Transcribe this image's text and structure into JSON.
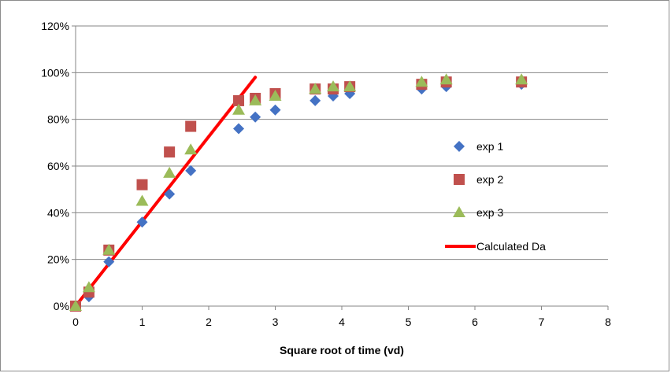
{
  "chart_data": {
    "type": "scatter",
    "title": "",
    "xlabel": "Square root of time (vd)",
    "ylabel": "",
    "xlim": [
      0,
      8
    ],
    "ylim": [
      0,
      1.2
    ],
    "x_ticks": [
      "0",
      "1",
      "2",
      "3",
      "4",
      "5",
      "6",
      "7",
      "8"
    ],
    "y_ticks": [
      "0%",
      "20%",
      "40%",
      "60%",
      "80%",
      "100%",
      "120%"
    ],
    "grid": "horizontal",
    "legend_position": "right",
    "series": [
      {
        "name": "exp 1",
        "marker": "diamond",
        "color": "#4472c4",
        "points": [
          [
            0,
            0.0
          ],
          [
            0.2,
            0.04
          ],
          [
            0.5,
            0.19
          ],
          [
            1.0,
            0.36
          ],
          [
            1.41,
            0.48
          ],
          [
            1.73,
            0.58
          ],
          [
            2.45,
            0.76
          ],
          [
            2.7,
            0.81
          ],
          [
            3.0,
            0.84
          ],
          [
            3.6,
            0.88
          ],
          [
            3.87,
            0.9
          ],
          [
            4.12,
            0.91
          ],
          [
            5.2,
            0.93
          ],
          [
            5.57,
            0.94
          ],
          [
            6.7,
            0.95
          ]
        ]
      },
      {
        "name": "exp 2",
        "marker": "square",
        "color": "#c0504d",
        "points": [
          [
            0,
            0.0
          ],
          [
            0.2,
            0.06
          ],
          [
            0.5,
            0.24
          ],
          [
            1.0,
            0.52
          ],
          [
            1.41,
            0.66
          ],
          [
            1.73,
            0.77
          ],
          [
            2.45,
            0.88
          ],
          [
            2.7,
            0.89
          ],
          [
            3.0,
            0.91
          ],
          [
            3.6,
            0.93
          ],
          [
            3.87,
            0.93
          ],
          [
            4.12,
            0.94
          ],
          [
            5.2,
            0.95
          ],
          [
            5.57,
            0.96
          ],
          [
            6.7,
            0.96
          ]
        ]
      },
      {
        "name": "exp 3",
        "marker": "triangle",
        "color": "#9bbb59",
        "points": [
          [
            0,
            0.0
          ],
          [
            0.2,
            0.08
          ],
          [
            0.5,
            0.24
          ],
          [
            1.0,
            0.45
          ],
          [
            1.41,
            0.57
          ],
          [
            1.73,
            0.67
          ],
          [
            2.45,
            0.84
          ],
          [
            2.7,
            0.88
          ],
          [
            3.0,
            0.9
          ],
          [
            3.6,
            0.93
          ],
          [
            3.87,
            0.94
          ],
          [
            4.12,
            0.94
          ],
          [
            5.2,
            0.96
          ],
          [
            5.57,
            0.97
          ],
          [
            6.7,
            0.97
          ]
        ]
      },
      {
        "name": "Calculated Da",
        "type": "line",
        "color": "#ff0000",
        "points": [
          [
            0,
            0.0
          ],
          [
            2.7,
            0.98
          ]
        ]
      }
    ]
  }
}
